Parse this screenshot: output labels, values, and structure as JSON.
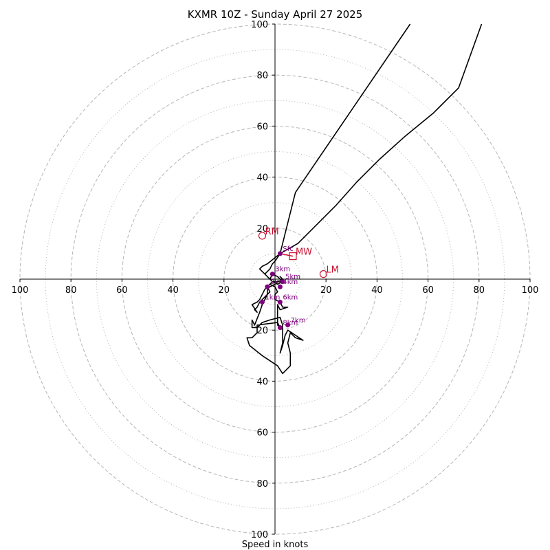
{
  "chart_data": {
    "type": "line",
    "title": "KXMR 10Z - Sunday April 27 2025",
    "xlabel": "Speed in knots",
    "ylabel": "",
    "xlim": [
      -100,
      100
    ],
    "ylim": [
      -100,
      100
    ],
    "rings_major": [
      20,
      40,
      60,
      80,
      100
    ],
    "rings_minor": [
      10,
      30,
      50,
      70,
      90
    ],
    "x_ticks": [
      {
        "v": -100,
        "label": "100"
      },
      {
        "v": -80,
        "label": "80"
      },
      {
        "v": -60,
        "label": "60"
      },
      {
        "v": -40,
        "label": "40"
      },
      {
        "v": -20,
        "label": "20"
      },
      {
        "v": 20,
        "label": "20"
      },
      {
        "v": 40,
        "label": "40"
      },
      {
        "v": 60,
        "label": "60"
      },
      {
        "v": 80,
        "label": "80"
      },
      {
        "v": 100,
        "label": "100"
      }
    ],
    "y_ticks": [
      {
        "v": 100,
        "label": "100"
      },
      {
        "v": 80,
        "label": "80"
      },
      {
        "v": 60,
        "label": "60"
      },
      {
        "v": 40,
        "label": "40"
      },
      {
        "v": 20,
        "label": "20"
      },
      {
        "v": -20,
        "label": "20"
      },
      {
        "v": -40,
        "label": "40"
      },
      {
        "v": -60,
        "label": "60"
      },
      {
        "v": -80,
        "label": "80"
      },
      {
        "v": -100,
        "label": "100"
      }
    ],
    "grid": true,
    "series": [
      {
        "color": "#000000",
        "points": [
          [
            53,
            100
          ],
          [
            8,
            34
          ],
          [
            2,
            10
          ],
          [
            -3,
            6
          ],
          [
            -5,
            5
          ],
          [
            -6,
            4
          ],
          [
            -5,
            3
          ],
          [
            -4,
            2
          ],
          [
            -3,
            1
          ],
          [
            -2,
            0
          ],
          [
            -1,
            2
          ],
          [
            1,
            1
          ],
          [
            3,
            -1
          ],
          [
            1,
            -2
          ],
          [
            -1,
            -1
          ],
          [
            -3,
            -3
          ],
          [
            -2,
            -5
          ],
          [
            -4,
            -7
          ],
          [
            -6,
            -9
          ],
          [
            -7,
            -11
          ],
          [
            -8,
            -12
          ],
          [
            -7,
            -13
          ],
          [
            -9,
            -10
          ],
          [
            -7,
            -9
          ],
          [
            -6,
            -8
          ],
          [
            -5,
            -6
          ],
          [
            -4,
            -4
          ],
          [
            -3,
            -3
          ],
          [
            -2,
            -2
          ],
          [
            0,
            -3
          ],
          [
            1,
            -5
          ],
          [
            0,
            -6
          ],
          [
            0,
            -8
          ],
          [
            2,
            -9
          ],
          [
            3,
            -11
          ],
          [
            5,
            -11
          ],
          [
            2,
            -12
          ],
          [
            1,
            -10
          ],
          [
            1,
            -14
          ],
          [
            1,
            -16
          ],
          [
            1,
            -18
          ],
          [
            2,
            -19
          ],
          [
            1,
            -17
          ],
          [
            -7,
            -18
          ],
          [
            -7,
            -21
          ],
          [
            -9,
            -23
          ],
          [
            -11,
            -23
          ],
          [
            -10,
            -26
          ],
          [
            -5,
            -30
          ],
          [
            1,
            -34
          ],
          [
            3,
            -37
          ],
          [
            6,
            -34
          ],
          [
            6,
            -32
          ],
          [
            6,
            -29
          ],
          [
            5,
            -25
          ],
          [
            6,
            -21
          ],
          [
            8,
            -23
          ],
          [
            11,
            -24
          ],
          [
            5,
            -20
          ],
          [
            4,
            -22
          ],
          [
            3,
            -26
          ],
          [
            2,
            -29
          ],
          [
            3,
            -25
          ],
          [
            3,
            -22
          ],
          [
            3,
            -18
          ],
          [
            2,
            -15
          ],
          [
            -2,
            -16
          ],
          [
            -5,
            -17
          ],
          [
            -7,
            -19
          ],
          [
            -9,
            -19
          ],
          [
            -9,
            -16
          ],
          [
            -8,
            -18
          ],
          [
            -6,
            -13
          ],
          [
            -5,
            -10
          ],
          [
            -4,
            -8
          ],
          [
            -3,
            -6
          ],
          [
            -3,
            -4
          ],
          [
            -2,
            -3
          ],
          [
            0,
            -2
          ],
          [
            1,
            -1
          ],
          [
            3,
            0
          ],
          [
            2,
            1
          ],
          [
            3,
            0
          ],
          [
            2,
            -1
          ],
          [
            -1,
            -1
          ],
          [
            -2,
            0
          ],
          [
            -3,
            1
          ],
          [
            -4,
            2
          ],
          [
            -3,
            3
          ],
          [
            -2,
            4
          ],
          [
            -1,
            6
          ],
          [
            0,
            7
          ],
          [
            2,
            10
          ],
          [
            9,
            14
          ],
          [
            16,
            21
          ],
          [
            24,
            29
          ],
          [
            32,
            38
          ],
          [
            41,
            47
          ],
          [
            51,
            56
          ],
          [
            62,
            65
          ],
          [
            72,
            75
          ],
          [
            81,
            100
          ]
        ]
      }
    ],
    "levels": [
      {
        "label": "Sfc",
        "x": 2,
        "y": 10
      },
      {
        "label": "1km",
        "x": -5,
        "y": -9
      },
      {
        "label": "2km",
        "x": -3,
        "y": -3
      },
      {
        "label": "3km",
        "x": -1,
        "y": 2
      },
      {
        "label": "4km",
        "x": 2,
        "y": -3
      },
      {
        "label": "5km",
        "x": 3,
        "y": -1
      },
      {
        "label": "6km",
        "x": 2,
        "y": -9
      },
      {
        "label": "7km",
        "x": 5,
        "y": -18
      },
      {
        "label": "8km",
        "x": 2,
        "y": -19
      }
    ],
    "storm_motions": [
      {
        "label": "RM",
        "x": -5,
        "y": 17,
        "marker": "circle"
      },
      {
        "label": "MW",
        "x": 7,
        "y": 9,
        "marker": "square"
      },
      {
        "label": "LM",
        "x": 19,
        "y": 2,
        "marker": "circle"
      }
    ],
    "colors": {
      "hodograph": "#000000",
      "levels": "#800080",
      "storm_motion": "#c8102e",
      "grid": "#b5b5b5"
    }
  }
}
